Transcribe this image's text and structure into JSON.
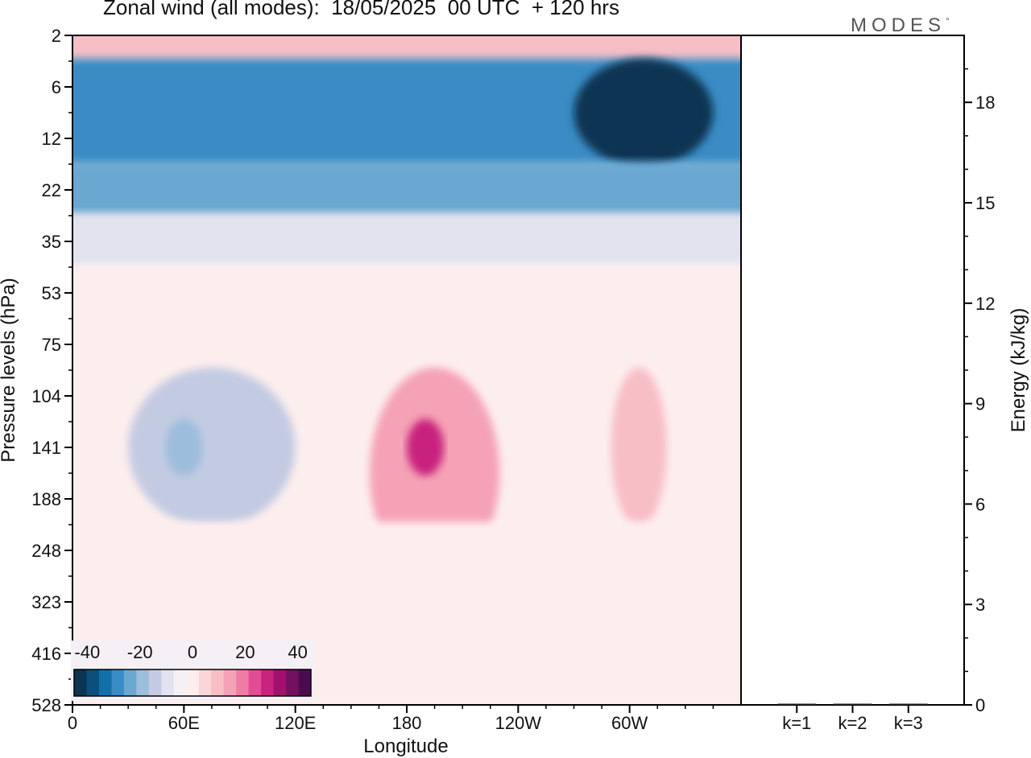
{
  "figure": {
    "title": "Zonal wind (all modes):  18/05/2025  00 UTC  + 120 hrs",
    "brand": "MODES",
    "brand_mark": "°"
  },
  "chart_data": [
    {
      "type": "heatmap",
      "title": "Zonal wind (all modes):  18/05/2025  00 UTC  + 120 hrs",
      "xlabel": "Longitude",
      "ylabel": "Pressure levels (hPa)",
      "x_ticks": [
        "0",
        "60E",
        "120E",
        "180",
        "120W",
        "60W"
      ],
      "x_tick_values": [
        0,
        60,
        120,
        180,
        240,
        300
      ],
      "xlim": [
        0,
        360
      ],
      "y_ticks": [
        "2",
        "6",
        "12",
        "22",
        "35",
        "53",
        "75",
        "104",
        "141",
        "188",
        "248",
        "323",
        "416",
        "528"
      ],
      "y_scale": "log",
      "colorbar": {
        "ticks": [
          "-40",
          "-20",
          "0",
          "20",
          "40"
        ],
        "tick_values": [
          -40,
          -20,
          0,
          20,
          40
        ],
        "range": [
          -45,
          45
        ],
        "bin_width": 5,
        "colors": [
          "#0a3553",
          "#0d4f7c",
          "#1170a8",
          "#3a8cc4",
          "#6aa8d2",
          "#9cbddb",
          "#c3cbe2",
          "#e2e3ef",
          "#f5f0f6",
          "#fdeeee",
          "#fad6d8",
          "#f8bec6",
          "#f5a2b6",
          "#f07ca5",
          "#e14d94",
          "#c8237e",
          "#a0106c",
          "#731060",
          "#4b0c4f"
        ]
      },
      "regions": [
        {
          "level": "2",
          "lon_range": [
            0,
            360
          ],
          "value": 10
        },
        {
          "level": "6-12",
          "lon_range": [
            0,
            360
          ],
          "value": -30
        },
        {
          "level": "6-12",
          "lon_range": [
            270,
            345
          ],
          "value": -42
        },
        {
          "level": "22",
          "lon_range": [
            0,
            360
          ],
          "value": -22
        },
        {
          "level": "35",
          "lon_range": [
            0,
            360
          ],
          "value": -8
        },
        {
          "level": "53-75",
          "lon_range": [
            0,
            360
          ],
          "value": 3
        },
        {
          "level": "104-188",
          "lon_range": [
            30,
            120
          ],
          "value": -12
        },
        {
          "level": "141",
          "lon_range": [
            50,
            70
          ],
          "value": -18
        },
        {
          "level": "104-248",
          "lon_range": [
            160,
            230
          ],
          "value": 18
        },
        {
          "level": "141",
          "lon_range": [
            180,
            200
          ],
          "value": 30
        },
        {
          "level": "104-188",
          "lon_range": [
            290,
            320
          ],
          "value": 12
        },
        {
          "level": "248-528",
          "lon_range": [
            0,
            360
          ],
          "value": 1
        }
      ]
    },
    {
      "type": "bar",
      "ylabel": "Energy (kJ/kg)",
      "categories": [
        "k=1",
        "k=2",
        "k=3"
      ],
      "values": [
        0,
        0,
        0
      ],
      "ylim": [
        0,
        20
      ],
      "y_ticks": [
        "0",
        "3",
        "6",
        "9",
        "12",
        "15",
        "18"
      ],
      "y_tick_values": [
        0,
        3,
        6,
        9,
        12,
        15,
        18
      ]
    }
  ]
}
